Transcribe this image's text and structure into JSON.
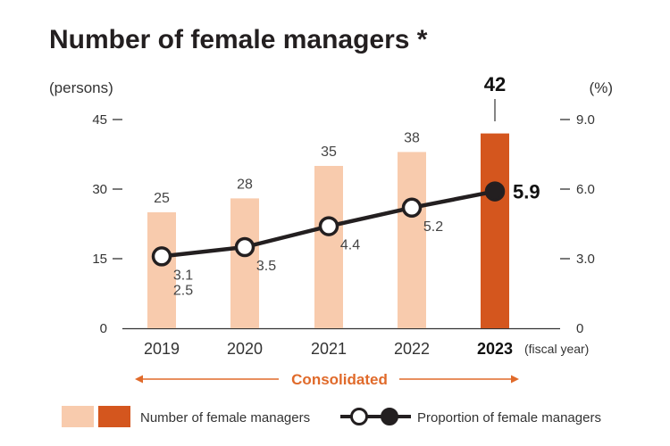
{
  "chart_data": {
    "type": "bar",
    "title": "Number of female managers *",
    "y_left_unit": "(persons)",
    "y_right_unit": "(%)",
    "categories": [
      "2019",
      "2020",
      "2021",
      "2022",
      "2023"
    ],
    "x_suffix": "(fiscal year)",
    "highlight_category": "2023",
    "ylim_left": [
      0,
      45
    ],
    "ylim_right": [
      0,
      9.0
    ],
    "yticks_left": [
      "0",
      "15",
      "30",
      "45"
    ],
    "yticks_right": [
      "0",
      "3.0",
      "6.0",
      "9.0"
    ],
    "grid": false,
    "legend_position": "bottom",
    "series": [
      {
        "name": "Number of female managers",
        "type": "bar",
        "axis": "left",
        "values": [
          25,
          28,
          35,
          38,
          42
        ]
      },
      {
        "name": "Proportion of female managers",
        "type": "line",
        "axis": "right",
        "values": [
          3.1,
          3.5,
          4.4,
          5.2,
          5.9
        ],
        "extra_labels": {
          "2019": "2.5"
        }
      }
    ],
    "annotation": "Consolidated"
  },
  "colors": {
    "bar": "#f8cbad",
    "bar_highlight": "#d4561e",
    "line": "#231f20",
    "accent": "#e06a2a"
  }
}
